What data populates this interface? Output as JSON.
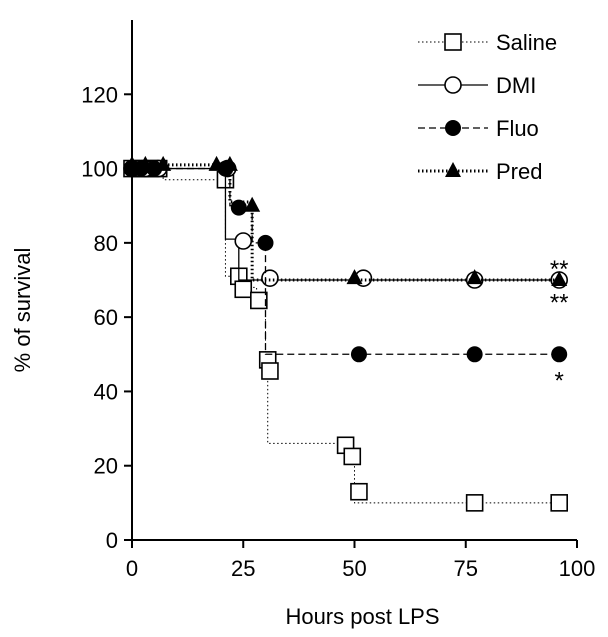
{
  "chart_data": {
    "type": "line",
    "chart_style": "step (Kaplan-Meier survival)",
    "xlabel": "Hours post LPS",
    "ylabel": "% of survival",
    "xlim": [
      0,
      100
    ],
    "ylim": [
      0,
      140
    ],
    "x_ticks": [
      "0",
      "25",
      "50",
      "75",
      "100"
    ],
    "y_ticks": [
      "0",
      "20",
      "40",
      "60",
      "80",
      "100",
      "120"
    ],
    "grid": false,
    "legend_position": "top-right",
    "series": [
      {
        "name": "Saline",
        "line_style": "dotted",
        "marker": "open-square",
        "steps": [
          [
            0,
            100
          ],
          [
            7,
            100
          ],
          [
            7,
            97
          ],
          [
            21,
            97
          ],
          [
            21,
            71
          ],
          [
            24,
            71
          ],
          [
            24,
            68
          ],
          [
            28,
            68
          ],
          [
            28,
            65
          ],
          [
            30,
            65
          ],
          [
            30,
            48.5
          ],
          [
            30.5,
            48.5
          ],
          [
            30.5,
            26
          ],
          [
            48,
            26
          ],
          [
            48,
            22.5
          ],
          [
            50,
            22.5
          ],
          [
            50,
            10
          ],
          [
            96,
            10
          ]
        ],
        "markers": [
          [
            0,
            100
          ],
          [
            2,
            100
          ],
          [
            4,
            100
          ],
          [
            6,
            100
          ],
          [
            21,
            97
          ],
          [
            24,
            71
          ],
          [
            25,
            67.5
          ],
          [
            28.5,
            64.5
          ],
          [
            30.5,
            48.5
          ],
          [
            31,
            45.5
          ],
          [
            48,
            25.5
          ],
          [
            49.5,
            22.5
          ],
          [
            51,
            13
          ],
          [
            77,
            10
          ],
          [
            96,
            10
          ]
        ]
      },
      {
        "name": "DMI",
        "line_style": "solid",
        "marker": "open-circle",
        "steps": [
          [
            0,
            100
          ],
          [
            21,
            100
          ],
          [
            21,
            81
          ],
          [
            24,
            81
          ],
          [
            24,
            70
          ],
          [
            96,
            70
          ]
        ],
        "markers": [
          [
            0,
            100
          ],
          [
            3,
            100
          ],
          [
            6,
            100
          ],
          [
            21.5,
            100
          ],
          [
            25,
            80.5
          ],
          [
            31,
            70.5
          ],
          [
            52,
            70.5
          ],
          [
            77,
            70
          ],
          [
            96,
            70
          ]
        ]
      },
      {
        "name": "Fluo",
        "line_style": "dashed",
        "marker": "filled-circle",
        "steps": [
          [
            0,
            100
          ],
          [
            22,
            100
          ],
          [
            22,
            90
          ],
          [
            27,
            90
          ],
          [
            27,
            80
          ],
          [
            30,
            80
          ],
          [
            30,
            50
          ],
          [
            96,
            50
          ]
        ],
        "markers": [
          [
            0,
            100
          ],
          [
            2,
            100
          ],
          [
            5,
            100
          ],
          [
            21,
            100
          ],
          [
            24,
            89.5
          ],
          [
            30,
            80
          ],
          [
            51,
            50
          ],
          [
            77,
            50
          ],
          [
            96,
            50
          ]
        ]
      },
      {
        "name": "Pred",
        "line_style": "dotted",
        "marker": "filled-triangle",
        "steps": [
          [
            0,
            101
          ],
          [
            22,
            101
          ],
          [
            22,
            91
          ],
          [
            27,
            91
          ],
          [
            27,
            70
          ],
          [
            96,
            70
          ]
        ],
        "markers": [
          [
            0,
            101
          ],
          [
            3,
            101
          ],
          [
            7,
            101
          ],
          [
            19,
            101
          ],
          [
            22,
            101
          ],
          [
            27,
            90
          ],
          [
            50,
            70.5
          ],
          [
            77,
            70.5
          ],
          [
            96,
            70
          ]
        ]
      }
    ],
    "annotations": [
      {
        "text": "**",
        "x": 96,
        "y": 73
      },
      {
        "text": "**",
        "x": 96,
        "y": 64
      },
      {
        "text": "*",
        "x": 96,
        "y": 43
      }
    ]
  }
}
